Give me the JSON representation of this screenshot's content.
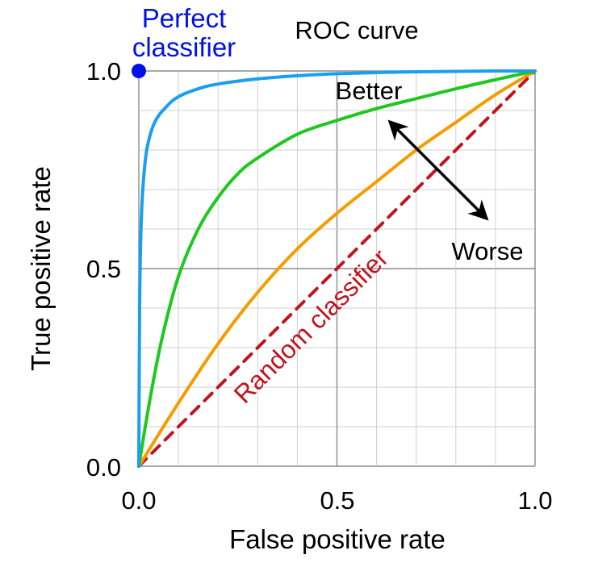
{
  "chart_data": {
    "type": "line",
    "title": "ROC curve",
    "xlabel": "False positive rate",
    "ylabel": "True positive rate",
    "xlim": [
      0,
      1
    ],
    "ylim": [
      0,
      1
    ],
    "x_ticks": [
      "0.0",
      "0.5",
      "1.0"
    ],
    "y_ticks": [
      "0.0",
      "0.5",
      "1.0"
    ],
    "grid": true,
    "grid_step": 0.1,
    "series": [
      {
        "color": "#1a9ff0",
        "style": "solid",
        "x": [
          0,
          0.002,
          0.005,
          0.01,
          0.02,
          0.04,
          0.07,
          0.1,
          0.15,
          0.2,
          0.3,
          0.4,
          0.5,
          0.6,
          0.7,
          0.8,
          0.9,
          1.0
        ],
        "y": [
          0,
          0.4,
          0.58,
          0.7,
          0.8,
          0.87,
          0.91,
          0.935,
          0.955,
          0.967,
          0.98,
          0.988,
          0.993,
          0.996,
          0.998,
          0.999,
          1.0,
          1.0
        ]
      },
      {
        "color": "#1ec81e",
        "style": "solid",
        "x": [
          0,
          0.03,
          0.06,
          0.1,
          0.15,
          0.2,
          0.25,
          0.3,
          0.4,
          0.5,
          0.6,
          0.7,
          0.8,
          0.9,
          1.0
        ],
        "y": [
          0,
          0.18,
          0.33,
          0.48,
          0.6,
          0.68,
          0.74,
          0.78,
          0.84,
          0.875,
          0.905,
          0.93,
          0.955,
          0.978,
          1.0
        ]
      },
      {
        "color": "#f59c00",
        "style": "solid",
        "x": [
          0,
          0.1,
          0.2,
          0.3,
          0.4,
          0.5,
          0.6,
          0.7,
          0.8,
          0.9,
          1.0
        ],
        "y": [
          0,
          0.16,
          0.31,
          0.44,
          0.55,
          0.64,
          0.72,
          0.8,
          0.87,
          0.94,
          1.0
        ]
      },
      {
        "color": "#c0141e",
        "style": "dashed",
        "x": [
          0,
          1
        ],
        "y": [
          0,
          1
        ]
      }
    ],
    "perfect_point": {
      "x": 0,
      "y": 1,
      "color": "#0010e6"
    },
    "annotations": {
      "perfect": [
        "Perfect",
        "classifier"
      ],
      "random": "Random classifier",
      "better": "Better",
      "worse": "Worse"
    }
  }
}
